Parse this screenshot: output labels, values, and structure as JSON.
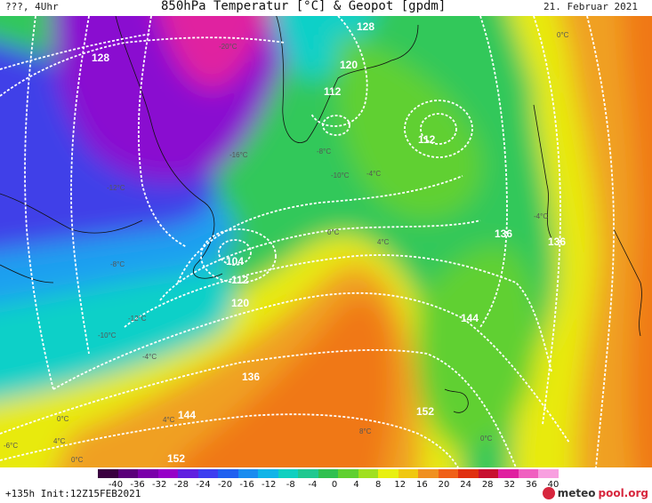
{
  "header": {
    "left": "???, 4Uhr",
    "title": "850hPa Temperatur [°C] & Geopot [gpdm]",
    "date": "21. Februar 2021"
  },
  "footer": {
    "info": "+135h Init:12Z15FEB2021",
    "brand_a": "meteo",
    "brand_b": "pool.org"
  },
  "legend": {
    "ticks": [
      "-40",
      "-36",
      "-32",
      "-28",
      "-24",
      "-20",
      "-16",
      "-12",
      "-8",
      "-4",
      "0",
      "4",
      "8",
      "12",
      "16",
      "20",
      "24",
      "28",
      "32",
      "36",
      "40"
    ],
    "colors": [
      "#3a0040",
      "#5a007a",
      "#7a00aa",
      "#9600c8",
      "#6020e0",
      "#3d3ef0",
      "#2060f0",
      "#1a8cf0",
      "#10b4e8",
      "#10d0c0",
      "#20c890",
      "#30c050",
      "#60d030",
      "#a0e020",
      "#e8f010",
      "#f0c810",
      "#f09020",
      "#f06018",
      "#e03010",
      "#c81030",
      "#e020a0",
      "#f060c0",
      "#f8a0e0"
    ]
  },
  "map": {
    "colors": {
      "magenta": "#e020a0",
      "purple": "#8a10d0",
      "blue": "#4040e8",
      "sky": "#1aa0f0",
      "cyan": "#10d0c8",
      "green": "#30c85a",
      "lime": "#80dc20",
      "yellow": "#e8ea10",
      "orange": "#f0a020",
      "darkorange": "#f07818"
    },
    "isobar_labels": [
      "128",
      "128",
      "120",
      "112",
      "112",
      "104",
      "112",
      "120",
      "136",
      "136",
      "136",
      "144",
      "144",
      "152",
      "152"
    ],
    "temp_labels": [
      "-20°C",
      "-16°C",
      "-12°C",
      "-10°C",
      "-8°C",
      "-4°C",
      "0°C",
      "4°C",
      "-12°C",
      "-10°C",
      "-4°C",
      "0°C",
      "0°C",
      "4°C",
      "4°C",
      "8°C",
      "-8°C",
      "-4°C",
      "0°C",
      "-6°C",
      "0°C"
    ]
  }
}
